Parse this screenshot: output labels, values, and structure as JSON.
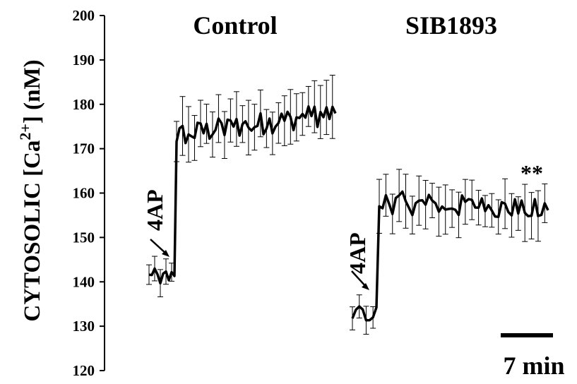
{
  "chart_data": {
    "type": "line",
    "ylabel": {
      "prefix": "CYTOSOLIC [Ca",
      "superscript": "2+",
      "suffix": "] (nM)"
    },
    "ylim": [
      120,
      200
    ],
    "yticks": [
      120,
      130,
      140,
      150,
      160,
      170,
      180,
      190,
      200
    ],
    "ytick_labels": [
      "120",
      "130",
      "140",
      "150",
      "160",
      "170",
      "180",
      "190",
      "200"
    ],
    "grid": false,
    "panels": [
      {
        "title": "Control",
        "arrow_label": "4AP",
        "segments": [
          {
            "phase": "baseline",
            "n": 10,
            "mean": 141,
            "noise": 2.0,
            "err": 2.5
          },
          {
            "phase": "response",
            "n": 54,
            "start": 173,
            "end": 178,
            "noise": 2.6,
            "err": 5.5
          }
        ]
      },
      {
        "title": "SIB1893",
        "arrow_label": "4AP",
        "significance": "**",
        "segments": [
          {
            "phase": "baseline",
            "n": 8,
            "mean": 133,
            "noise": 2.0,
            "err": 2.5
          },
          {
            "phase": "response",
            "n": 52,
            "start": 158,
            "end": 156,
            "noise": 2.6,
            "err": 5.0
          }
        ]
      }
    ],
    "scale_bar": {
      "label": "7 min"
    }
  }
}
